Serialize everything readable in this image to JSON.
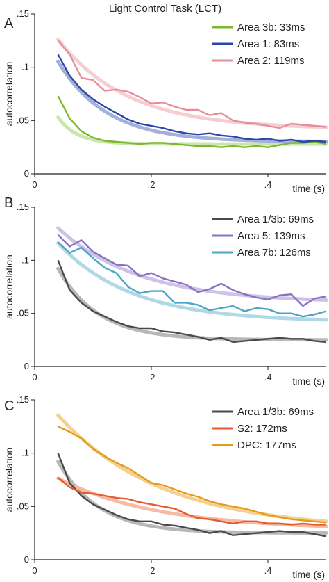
{
  "figure": {
    "title": "Light Control Task (LCT)"
  },
  "chart_data": [
    {
      "type": "line",
      "panel": "A",
      "title": "Light Control Task (LCT)",
      "xlabel": "time (s)",
      "ylabel": "autocorrelation",
      "xlim": [
        0,
        0.5
      ],
      "ylim": [
        0,
        0.15
      ],
      "xticks": [
        "0",
        ".2",
        ".4"
      ],
      "yticks": [
        "0",
        ".05",
        ".1",
        ".15"
      ],
      "x": [
        0.04,
        0.06,
        0.08,
        0.1,
        0.12,
        0.14,
        0.16,
        0.18,
        0.2,
        0.22,
        0.24,
        0.26,
        0.28,
        0.3,
        0.32,
        0.34,
        0.36,
        0.38,
        0.4,
        0.42,
        0.44,
        0.46,
        0.48,
        0.5
      ],
      "legend_position": "top-right",
      "series": [
        {
          "name": "Area 3b: 33ms",
          "color": "#7cb82f",
          "fit_color": "#c5e3a3",
          "fit": {
            "a": 0.084,
            "tau": 0.033,
            "b": 0.028
          },
          "values": [
            0.073,
            0.052,
            0.04,
            0.034,
            0.031,
            0.03,
            0.029,
            0.028,
            0.029,
            0.029,
            0.028,
            0.027,
            0.026,
            0.026,
            0.025,
            0.026,
            0.025,
            0.026,
            0.025,
            0.027,
            0.029,
            0.029,
            0.03,
            0.028
          ]
        },
        {
          "name": "Area 1: 83ms",
          "color": "#2a46a8",
          "fit_color": "#9aa6d6",
          "fit": {
            "a": 0.122,
            "tau": 0.083,
            "b": 0.03
          },
          "values": [
            0.112,
            0.092,
            0.079,
            0.07,
            0.063,
            0.057,
            0.051,
            0.047,
            0.045,
            0.043,
            0.04,
            0.038,
            0.037,
            0.038,
            0.036,
            0.035,
            0.033,
            0.032,
            0.033,
            0.031,
            0.032,
            0.03,
            0.031,
            0.03
          ]
        },
        {
          "name": "Area 2: 119ms",
          "color": "#e58e9a",
          "fit_color": "#f4c9cf",
          "fit": {
            "a": 0.118,
            "tau": 0.119,
            "b": 0.042
          },
          "values": [
            0.125,
            0.112,
            0.09,
            0.088,
            0.078,
            0.079,
            0.077,
            0.072,
            0.066,
            0.067,
            0.063,
            0.06,
            0.06,
            0.055,
            0.057,
            0.05,
            0.048,
            0.047,
            0.045,
            0.043,
            0.047,
            0.046,
            0.045,
            0.044
          ]
        }
      ]
    },
    {
      "type": "line",
      "panel": "B",
      "xlabel": "time (s)",
      "ylabel": "autocorrelation",
      "xlim": [
        0,
        0.5
      ],
      "ylim": [
        0,
        0.15
      ],
      "xticks": [
        "0",
        ".2",
        ".4"
      ],
      "yticks": [
        "0",
        ".05",
        ".1",
        ".15"
      ],
      "x": [
        0.04,
        0.06,
        0.08,
        0.1,
        0.12,
        0.14,
        0.16,
        0.18,
        0.2,
        0.22,
        0.24,
        0.26,
        0.28,
        0.3,
        0.32,
        0.34,
        0.36,
        0.38,
        0.4,
        0.42,
        0.44,
        0.46,
        0.48,
        0.5
      ],
      "legend_position": "top-right",
      "series": [
        {
          "name": "Area 1/3b: 69ms",
          "color": "#4a4a4a",
          "fit_color": "#b0b0b0",
          "fit": {
            "a": 0.12,
            "tau": 0.069,
            "b": 0.025
          },
          "values": [
            0.1,
            0.072,
            0.06,
            0.052,
            0.047,
            0.042,
            0.038,
            0.036,
            0.036,
            0.033,
            0.032,
            0.03,
            0.028,
            0.025,
            0.027,
            0.023,
            0.024,
            0.025,
            0.026,
            0.027,
            0.026,
            0.026,
            0.024,
            0.023
          ]
        },
        {
          "name": "Area 5: 139ms",
          "color": "#8a72c2",
          "fit_color": "#c8bde6",
          "fit": {
            "a": 0.094,
            "tau": 0.139,
            "b": 0.06
          },
          "values": [
            0.124,
            0.113,
            0.119,
            0.108,
            0.102,
            0.096,
            0.095,
            0.085,
            0.088,
            0.083,
            0.08,
            0.077,
            0.07,
            0.073,
            0.078,
            0.072,
            0.068,
            0.065,
            0.063,
            0.067,
            0.068,
            0.057,
            0.064,
            0.066
          ]
        },
        {
          "name": "Area 7b: 126ms",
          "color": "#4ba5c4",
          "fit_color": "#a9d4e3",
          "fit": {
            "a": 0.102,
            "tau": 0.126,
            "b": 0.042
          },
          "values": [
            0.117,
            0.107,
            0.112,
            0.102,
            0.093,
            0.088,
            0.075,
            0.069,
            0.071,
            0.071,
            0.06,
            0.06,
            0.058,
            0.053,
            0.055,
            0.057,
            0.052,
            0.055,
            0.054,
            0.05,
            0.05,
            0.047,
            0.049,
            0.052
          ]
        }
      ]
    },
    {
      "type": "line",
      "panel": "C",
      "xlabel": "time (s)",
      "ylabel": "autocorrelation",
      "xlim": [
        0,
        0.5
      ],
      "ylim": [
        0,
        0.15
      ],
      "xticks": [
        "0",
        ".2",
        ".4"
      ],
      "yticks": [
        "0",
        ".05",
        ".1",
        ".15"
      ],
      "x": [
        0.04,
        0.06,
        0.08,
        0.1,
        0.12,
        0.14,
        0.16,
        0.18,
        0.2,
        0.22,
        0.24,
        0.26,
        0.28,
        0.3,
        0.32,
        0.34,
        0.36,
        0.38,
        0.4,
        0.42,
        0.44,
        0.46,
        0.48,
        0.5
      ],
      "legend_position": "top-right",
      "series": [
        {
          "name": "Area 1/3b: 69ms",
          "color": "#4a4a4a",
          "fit_color": "#b0b0b0",
          "fit": {
            "a": 0.12,
            "tau": 0.069,
            "b": 0.025
          },
          "values": [
            0.1,
            0.072,
            0.06,
            0.052,
            0.047,
            0.042,
            0.038,
            0.036,
            0.036,
            0.033,
            0.032,
            0.03,
            0.028,
            0.025,
            0.027,
            0.023,
            0.024,
            0.025,
            0.026,
            0.027,
            0.026,
            0.026,
            0.024,
            0.022
          ]
        },
        {
          "name": "S2: 172ms",
          "color": "#e85a2c",
          "fit_color": "#f4b49e",
          "fit": {
            "a": 0.061,
            "tau": 0.172,
            "b": 0.028
          },
          "values": [
            0.077,
            0.068,
            0.063,
            0.062,
            0.06,
            0.058,
            0.057,
            0.054,
            0.052,
            0.05,
            0.048,
            0.043,
            0.039,
            0.038,
            0.036,
            0.034,
            0.036,
            0.036,
            0.034,
            0.034,
            0.033,
            0.034,
            0.033,
            0.033
          ]
        },
        {
          "name": "DPC: 177ms",
          "color": "#e59a1c",
          "fit_color": "#f3cc85",
          "fit": {
            "a": 0.135,
            "tau": 0.177,
            "b": 0.028
          },
          "values": [
            0.125,
            0.12,
            0.114,
            0.104,
            0.097,
            0.091,
            0.086,
            0.079,
            0.072,
            0.07,
            0.066,
            0.062,
            0.059,
            0.055,
            0.052,
            0.05,
            0.048,
            0.045,
            0.042,
            0.04,
            0.038,
            0.037,
            0.036,
            0.035
          ]
        }
      ]
    }
  ]
}
